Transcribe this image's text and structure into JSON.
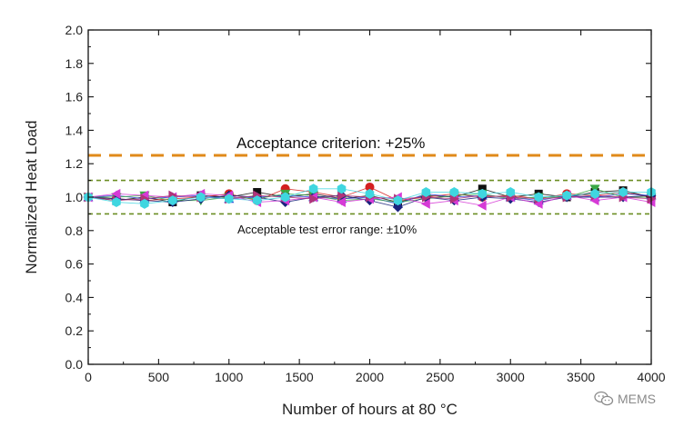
{
  "chart_data": {
    "type": "line",
    "xlabel": "Number of hours at 80 °C",
    "ylabel": "Normalized Heat Load",
    "xlim": [
      0,
      4000
    ],
    "ylim": [
      0.0,
      2.0
    ],
    "xticks": [
      0,
      500,
      1000,
      1500,
      2000,
      2500,
      3000,
      3500,
      4000
    ],
    "yticks": [
      "0.0",
      "0.2",
      "0.4",
      "0.6",
      "0.8",
      "1.0",
      "1.2",
      "1.4",
      "1.6",
      "1.8",
      "2.0"
    ],
    "grid": false,
    "x": [
      0,
      200,
      400,
      600,
      800,
      1000,
      1200,
      1400,
      1600,
      1800,
      2000,
      2200,
      2400,
      2600,
      2800,
      3000,
      3200,
      3400,
      3600,
      3800,
      4000
    ],
    "series": [
      {
        "color": "#111111",
        "marker": "square",
        "values": [
          1.0,
          0.98,
          1.0,
          0.97,
          1.01,
          1.0,
          1.03,
          1.0,
          1.02,
          0.99,
          1.01,
          0.97,
          1.01,
          1.0,
          1.05,
          1.0,
          1.02,
          1.0,
          1.03,
          1.04,
          1.0
        ]
      },
      {
        "color": "#d42020",
        "marker": "circle",
        "values": [
          1.0,
          0.99,
          0.98,
          0.99,
          1.0,
          1.02,
          0.98,
          1.05,
          1.03,
          1.0,
          1.06,
          0.98,
          1.0,
          1.02,
          1.0,
          1.01,
          0.99,
          1.02,
          1.01,
          1.03,
          1.0
        ]
      },
      {
        "color": "#2a3fd4",
        "marker": "triangle-up",
        "values": [
          1.0,
          1.01,
          0.99,
          1.0,
          1.01,
          0.99,
          1.0,
          1.01,
          1.0,
          0.99,
          1.0,
          0.96,
          1.02,
          1.0,
          1.01,
          1.0,
          0.98,
          1.01,
          1.0,
          1.02,
          1.01
        ]
      },
      {
        "color": "#3aa845",
        "marker": "triangle-down",
        "values": [
          1.0,
          1.0,
          1.01,
          0.98,
          0.98,
          1.0,
          0.99,
          1.02,
          1.01,
          0.98,
          0.99,
          0.97,
          0.99,
          1.01,
          1.02,
          0.99,
          1.0,
          1.0,
          1.05,
          1.0,
          1.0
        ]
      },
      {
        "color": "#1a237e",
        "marker": "diamond",
        "values": [
          1.0,
          0.99,
          0.98,
          0.97,
          0.99,
          1.01,
          1.0,
          0.97,
          1.0,
          1.01,
          0.98,
          0.94,
          1.0,
          0.98,
          1.0,
          0.99,
          0.97,
          1.0,
          1.0,
          1.0,
          1.01
        ]
      },
      {
        "color": "#d63ad6",
        "marker": "triangle-left",
        "values": [
          1.0,
          1.02,
          1.01,
          1.0,
          1.02,
          1.01,
          0.97,
          0.98,
          1.0,
          0.97,
          0.99,
          1.0,
          0.96,
          0.98,
          0.95,
          1.0,
          0.96,
          1.01,
          0.98,
          1.0,
          0.97
        ]
      },
      {
        "color": "#b0347a",
        "marker": "triangle-right",
        "values": [
          1.0,
          0.98,
          0.99,
          1.01,
          1.0,
          0.99,
          1.01,
          1.0,
          0.99,
          1.01,
          1.0,
          0.99,
          1.0,
          0.99,
          1.01,
          1.0,
          0.99,
          1.0,
          1.01,
          1.0,
          0.99
        ]
      },
      {
        "color": "#3fd6e0",
        "marker": "hexagon",
        "values": [
          1.0,
          0.97,
          0.96,
          0.98,
          1.0,
          0.99,
          0.98,
          1.0,
          1.05,
          1.05,
          1.02,
          0.98,
          1.03,
          1.03,
          1.02,
          1.03,
          1.0,
          1.01,
          1.02,
          1.03,
          1.03
        ]
      }
    ],
    "reference_lines": [
      {
        "y": 1.25,
        "color": "#e08a1a",
        "style": "dashed",
        "label": "Acceptance criterion: +25%"
      },
      {
        "y": 1.1,
        "color": "#6b8e23",
        "style": "dashed",
        "label": ""
      },
      {
        "y": 0.9,
        "color": "#6b8e23",
        "style": "dashed",
        "label": "Acceptable test error range: ±10%"
      }
    ]
  },
  "watermark": {
    "text": "MEMS",
    "icon": "wechat-icon"
  }
}
